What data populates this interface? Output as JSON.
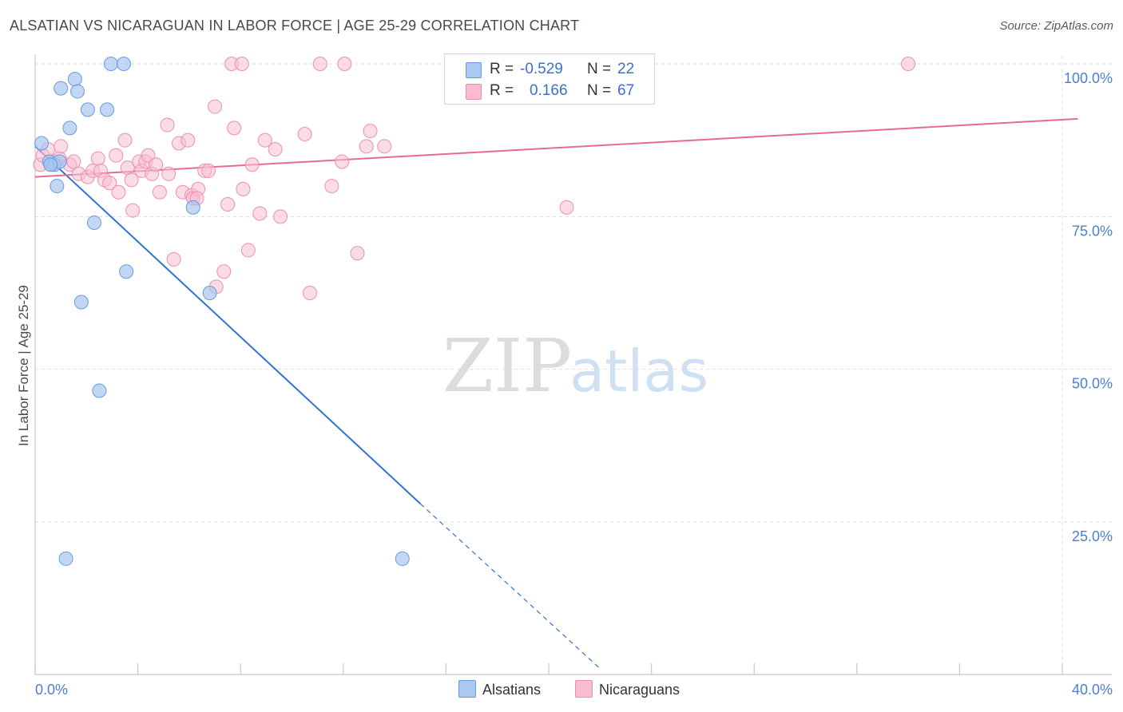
{
  "header": {
    "title": "ALSATIAN VS NICARAGUAN IN LABOR FORCE | AGE 25-29 CORRELATION CHART",
    "source": "Source: ZipAtlas.com"
  },
  "watermark": {
    "zip": "ZIP",
    "atlas": "atlas"
  },
  "legend": {
    "row1": {
      "r_label": "R =",
      "r_value": "-0.529",
      "n_label": "N =",
      "n_value": "22",
      "color": "#aac8f2"
    },
    "row2": {
      "r_label": "R =",
      "r_value": "0.166",
      "n_label": "N =",
      "n_value": "67",
      "color": "#f7bcd0"
    }
  },
  "bottom_legend": {
    "series1": "Alsatians",
    "series2": "Nicaraguans"
  },
  "colors": {
    "blue_fill": "#a7c6f0",
    "blue_stroke": "#6a9ae0",
    "blue_line": "#2f74d4",
    "pink_fill": "#f8c0d2",
    "pink_stroke": "#ec8fae",
    "pink_line": "#e56b95",
    "axis_text": "#4a7fd0"
  },
  "chart_data": {
    "type": "scatter",
    "title": "ALSATIAN VS NICARAGUAN IN LABOR FORCE | AGE 25-29 CORRELATION CHART",
    "xlabel": "",
    "ylabel": "In Labor Force | Age 25-29",
    "xlim": [
      0,
      40
    ],
    "ylim": [
      0,
      105
    ],
    "x_tick_labels": [
      "0.0%",
      "40.0%"
    ],
    "y_ticks": [
      25,
      50,
      75,
      100
    ],
    "y_tick_labels": [
      "25.0%",
      "50.0%",
      "75.0%",
      "100.0%"
    ],
    "grid": true,
    "series": [
      {
        "name": "Alsatians",
        "R": -0.529,
        "N": 22,
        "points": [
          [
            0.25,
            87.0
          ],
          [
            0.55,
            84.0
          ],
          [
            0.75,
            83.5
          ],
          [
            0.85,
            80.0
          ],
          [
            0.95,
            84.0
          ],
          [
            1.0,
            96.0
          ],
          [
            1.35,
            89.5
          ],
          [
            1.55,
            97.5
          ],
          [
            1.65,
            95.5
          ],
          [
            2.05,
            92.5
          ],
          [
            2.3,
            74.0
          ],
          [
            1.8,
            61.0
          ],
          [
            2.5,
            46.5
          ],
          [
            2.8,
            92.5
          ],
          [
            2.95,
            100.0
          ],
          [
            3.45,
            100.0
          ],
          [
            3.55,
            66.0
          ],
          [
            6.15,
            76.5
          ],
          [
            6.8,
            62.5
          ],
          [
            1.2,
            19.0
          ],
          [
            14.3,
            19.0
          ],
          [
            0.6,
            83.5
          ]
        ],
        "trend": {
          "x0": 0,
          "y0": 86.5,
          "x1": 15.0,
          "y1": 28.0,
          "dashed_to_x": 22.0,
          "dashed_to_y": 1.0
        }
      },
      {
        "name": "Nicaraguans",
        "R": 0.166,
        "N": 67,
        "points": [
          [
            0.2,
            83.5
          ],
          [
            0.3,
            85.0
          ],
          [
            0.5,
            86.0
          ],
          [
            0.6,
            83.5
          ],
          [
            0.8,
            84.0
          ],
          [
            0.95,
            84.5
          ],
          [
            1.0,
            86.5
          ],
          [
            1.35,
            83.5
          ],
          [
            1.5,
            84.0
          ],
          [
            1.7,
            82.0
          ],
          [
            2.05,
            81.5
          ],
          [
            2.25,
            82.5
          ],
          [
            2.45,
            84.5
          ],
          [
            2.55,
            82.5
          ],
          [
            2.7,
            81.0
          ],
          [
            2.9,
            80.5
          ],
          [
            3.15,
            85.0
          ],
          [
            3.25,
            79.0
          ],
          [
            3.5,
            87.5
          ],
          [
            3.6,
            83.0
          ],
          [
            3.75,
            81.0
          ],
          [
            3.8,
            76.0
          ],
          [
            4.05,
            84.0
          ],
          [
            4.15,
            82.5
          ],
          [
            4.3,
            84.0
          ],
          [
            4.4,
            85.0
          ],
          [
            4.55,
            82.0
          ],
          [
            4.7,
            83.5
          ],
          [
            4.85,
            79.0
          ],
          [
            5.15,
            90.0
          ],
          [
            5.2,
            82.0
          ],
          [
            5.4,
            68.0
          ],
          [
            5.6,
            87.0
          ],
          [
            5.75,
            79.0
          ],
          [
            5.95,
            87.5
          ],
          [
            6.1,
            78.5
          ],
          [
            6.15,
            78.0
          ],
          [
            6.35,
            79.5
          ],
          [
            6.6,
            82.5
          ],
          [
            6.75,
            82.5
          ],
          [
            7.0,
            93.0
          ],
          [
            7.05,
            63.5
          ],
          [
            7.35,
            66.0
          ],
          [
            7.5,
            77.0
          ],
          [
            7.65,
            100.0
          ],
          [
            7.75,
            89.5
          ],
          [
            8.05,
            100.0
          ],
          [
            8.1,
            79.5
          ],
          [
            8.3,
            69.5
          ],
          [
            8.45,
            83.5
          ],
          [
            8.75,
            75.5
          ],
          [
            8.95,
            87.5
          ],
          [
            9.35,
            86.0
          ],
          [
            9.55,
            75.0
          ],
          [
            10.5,
            88.5
          ],
          [
            10.7,
            62.5
          ],
          [
            11.1,
            100.0
          ],
          [
            11.55,
            80.0
          ],
          [
            11.95,
            84.0
          ],
          [
            12.05,
            100.0
          ],
          [
            12.55,
            69.0
          ],
          [
            12.9,
            86.5
          ],
          [
            13.05,
            89.0
          ],
          [
            13.6,
            86.5
          ],
          [
            20.7,
            76.5
          ],
          [
            34.0,
            100.0
          ],
          [
            6.3,
            78.0
          ]
        ],
        "trend": {
          "x0": 0,
          "y0": 81.5,
          "x1": 40.6,
          "y1": 91.0
        }
      }
    ]
  }
}
